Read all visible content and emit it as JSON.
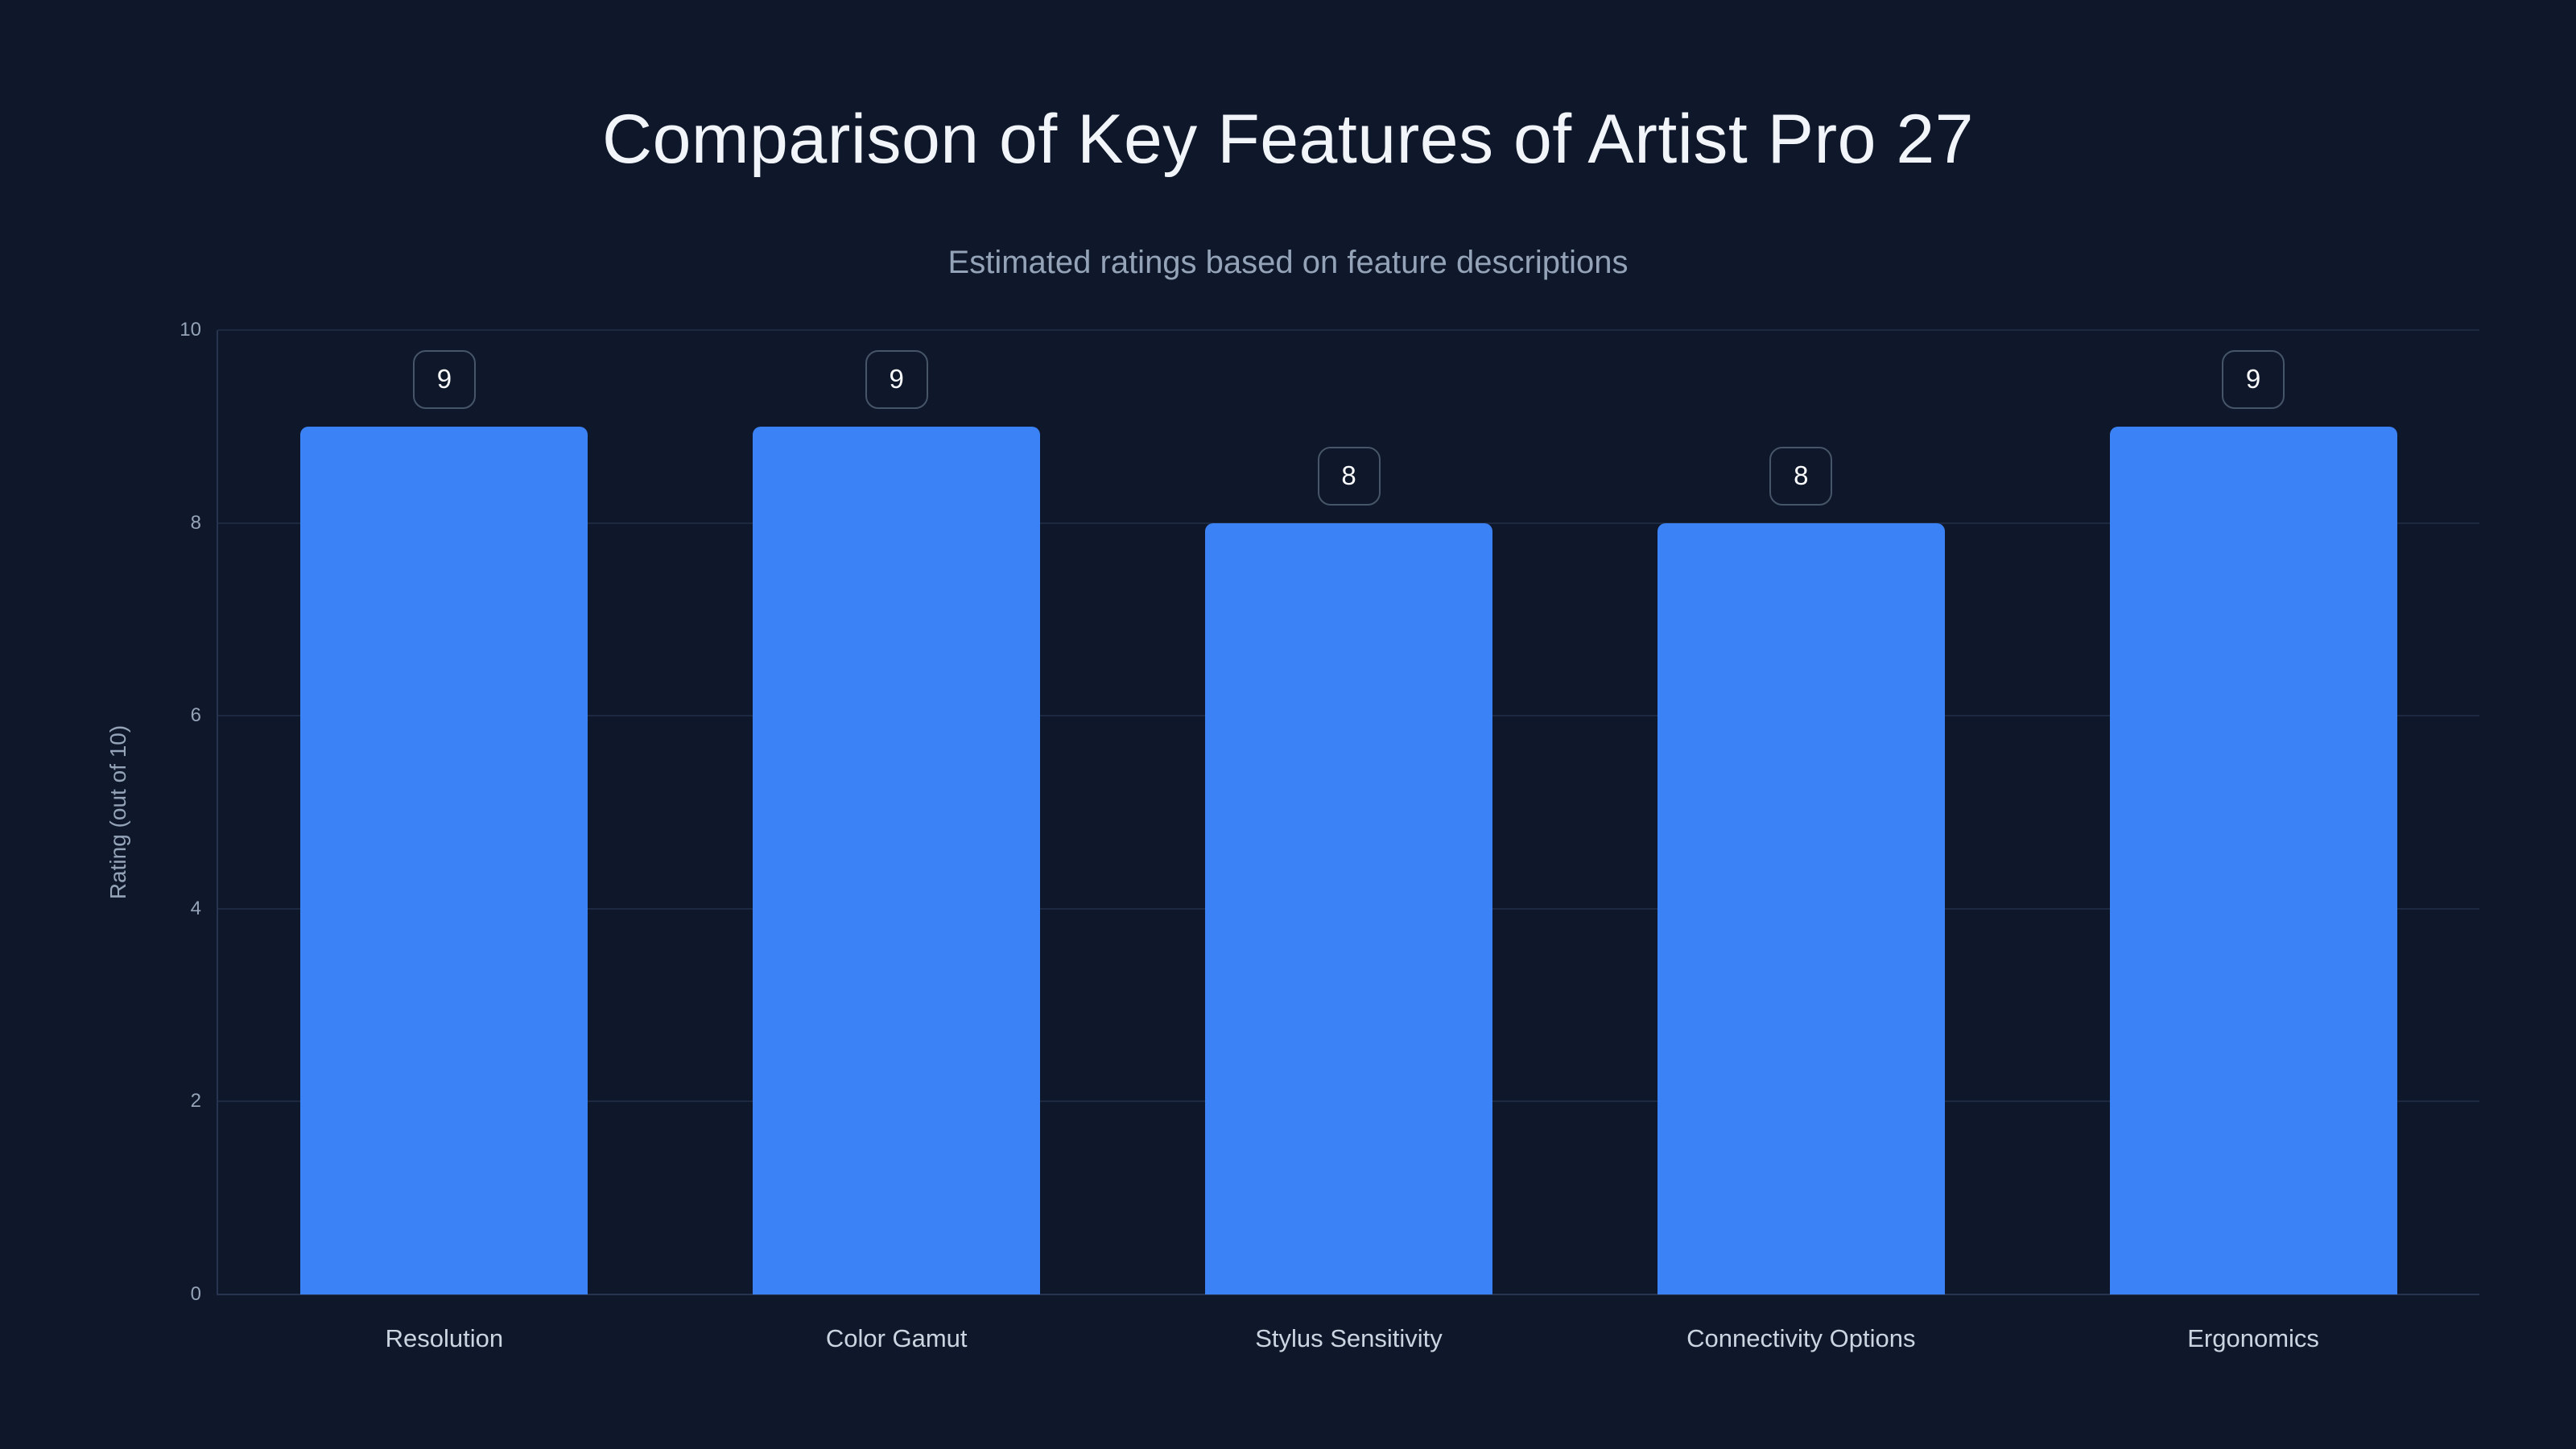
{
  "page": {
    "background_color": "#0f172a"
  },
  "header": {
    "title": "Comparison of Key Features of Artist Pro 27",
    "subtitle": "Estimated ratings based on feature descriptions"
  },
  "chart_data": {
    "type": "bar",
    "title": "Comparison of Key Features of Artist Pro 27",
    "subtitle": "Estimated ratings based on feature descriptions",
    "categories": [
      "Resolution",
      "Color Gamut",
      "Stylus Sensitivity",
      "Connectivity Options",
      "Ergonomics"
    ],
    "values": [
      9,
      9,
      8,
      8,
      9
    ],
    "value_labels": [
      "9",
      "9",
      "8",
      "8",
      "9"
    ],
    "xlabel": "",
    "ylabel": "Rating (out of 10)",
    "ylim": [
      0,
      10
    ],
    "yticks": [
      0,
      2,
      4,
      6,
      8,
      10
    ],
    "grid": true,
    "legend": "none",
    "bar_color": "#3b82f6",
    "grid_color": "#1d2940",
    "axis_color": "#273450",
    "tick_label_color": "#94a3b8",
    "category_label_color": "#cbd5e1",
    "title_color": "#f1f5f9",
    "subtitle_color": "#94a3b8",
    "value_badge_border_color": "#475569",
    "value_badge_text_color": "#f8fafc"
  }
}
